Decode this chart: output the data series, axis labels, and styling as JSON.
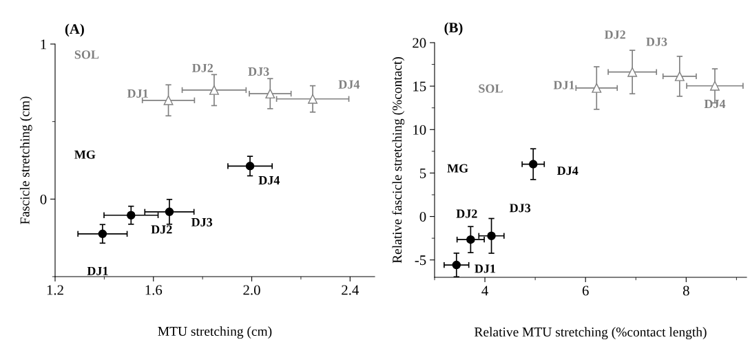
{
  "chart_data": [
    {
      "type": "scatter",
      "title": "(A)",
      "xlabel": "MTU stretching (cm)",
      "ylabel": "Fascicle stretching (cm)",
      "xlim": [
        1.2,
        2.5
      ],
      "xticks": [
        {
          "value": 1.2,
          "label": "1.2"
        },
        {
          "value": 1.6,
          "label": "1.6"
        },
        {
          "value": 2.0,
          "label": "2.0"
        },
        {
          "value": 2.4,
          "label": "2.4"
        }
      ],
      "ylim": [
        -0.5,
        1
      ],
      "yticks": [
        0,
        1
      ],
      "grid": false,
      "legend": false,
      "series": [
        {
          "name": "SOL",
          "color": "#808080",
          "marker": "triangle",
          "x": [
            1.661,
            1.847,
            2.075,
            2.248
          ],
          "values": [
            0.637,
            0.703,
            0.68,
            0.646
          ],
          "xerrors": [
            0.106,
            0.13,
            0.085,
            0.147
          ],
          "errors": [
            0.1,
            0.1,
            0.097,
            0.085
          ],
          "value_labels": [
            "DJ1",
            "DJ2",
            "DJ3",
            "DJ4"
          ]
        },
        {
          "name": "MG",
          "color": "#000000",
          "marker": "circle",
          "x": [
            1.393,
            1.509,
            1.665,
            1.993
          ],
          "values": [
            -0.224,
            -0.104,
            -0.082,
            0.213
          ],
          "xerrors": [
            0.1,
            0.11,
            0.1,
            0.09
          ],
          "errors": [
            0.06,
            0.058,
            0.08,
            0.063
          ],
          "value_labels": [
            "DJ1",
            "DJ2",
            "DJ3",
            "DJ4"
          ]
        }
      ]
    },
    {
      "type": "scatter",
      "title": "(B)",
      "xlabel": "Relative MTU stretching (%contact length)",
      "ylabel": "Relative fascicle stretching (%contact)",
      "xlim": [
        3,
        9.2
      ],
      "xticks": [
        4,
        6,
        8
      ],
      "ylim": [
        -7,
        20
      ],
      "yticks": [
        -5,
        0,
        5,
        10,
        15,
        20
      ],
      "grid": false,
      "legend": false,
      "series": [
        {
          "name": "SOL",
          "color": "#808080",
          "marker": "triangle",
          "x": [
            6.22,
            6.93,
            7.87,
            8.57
          ],
          "values": [
            14.78,
            16.62,
            16.13,
            15.03
          ],
          "xerrors": [
            0.41,
            0.48,
            0.33,
            0.56
          ],
          "errors": [
            2.45,
            2.5,
            2.3,
            1.96
          ],
          "value_labels": [
            "DJ1",
            "DJ2",
            "DJ3",
            "DJ4"
          ]
        },
        {
          "name": "MG",
          "color": "#000000",
          "marker": "circle",
          "x": [
            3.435,
            3.717,
            4.13,
            4.96
          ],
          "values": [
            -5.58,
            -2.66,
            -2.23,
            6.02
          ],
          "xerrors": [
            0.245,
            0.27,
            0.25,
            0.22
          ],
          "errors": [
            1.36,
            1.5,
            2.0,
            1.77
          ],
          "value_labels": [
            "DJ1",
            "DJ2",
            "DJ3",
            "DJ4"
          ]
        }
      ]
    }
  ]
}
